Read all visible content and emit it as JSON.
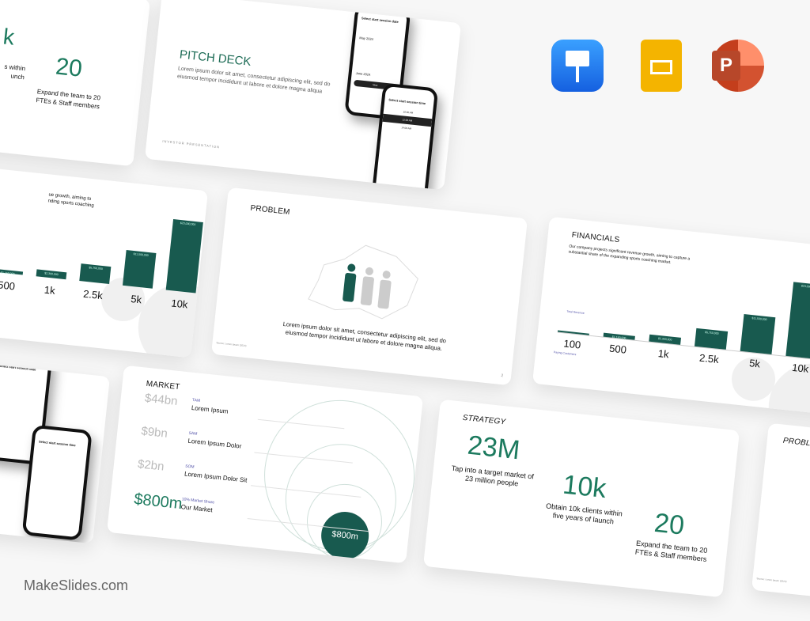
{
  "brand": "MakeSlides.com",
  "app_icons": [
    {
      "name": "keynote-icon",
      "color": "#1e7cf0"
    },
    {
      "name": "google-slides-icon",
      "color": "#f4b400"
    },
    {
      "name": "powerpoint-icon",
      "color": "#c43e1c"
    }
  ],
  "colors": {
    "accent": "#185a4f",
    "accent_text": "#1c7a5e"
  },
  "top_left_partial": {
    "stat": "20",
    "caption_partial": "s within\nunch",
    "caption": "Expand the team to 20 FTEs & Staff members",
    "stat_partial": "k"
  },
  "pitch": {
    "title": "PITCH DECK",
    "body": "Lorem ipsum dolor sit amet, consectetur adipiscing elit, sed do eiusmod tempor incididunt ut labore et dolore magna aliqua",
    "footer": "INVESTOR PRESENTATION",
    "phone1": {
      "title": "Select start session date",
      "month1": "May 2024",
      "month2": "June 2024",
      "button": "Next"
    },
    "phone2": {
      "title": "Select start session time",
      "slots": [
        "10:00 AM",
        "12:00 AM",
        "14:00 AM"
      ]
    }
  },
  "left_chart": {
    "text": "ue growth, aiming to\nnding sports coaching"
  },
  "problem": {
    "title": "PROBLEM",
    "body": "Lorem ipsum dolor sit amet, consectetur adipiscing elit, sed do eiusmod tempor incididunt ut labore et dolore magna aliqua.",
    "source": "Source: Lorem Ipsum (2024)",
    "page": "2"
  },
  "chart_data": {
    "type": "bar",
    "title": "FINANCIALS",
    "subtitle": "Our company projects significant revenue growth, aiming to capture a substantial share of the expanding sports coaching market.",
    "series_label": "Total Revenue",
    "x_label": "Paying Customers",
    "categories": [
      "100",
      "500",
      "1k",
      "2.5k",
      "5k",
      "10k"
    ],
    "values": [
      230000,
      1150000,
      2300000,
      5750000,
      11500000,
      23000000
    ],
    "data_labels": [
      "",
      "$1,150,000",
      "$2,300,000",
      "$5,750,000",
      "$11,500,000",
      "$23,000,000"
    ]
  },
  "market": {
    "title": "MARKET",
    "rows": [
      {
        "value": "$44bn",
        "tag": "TAM",
        "label": "Lorem Ipsum"
      },
      {
        "value": "$9bn",
        "tag": "SAM",
        "label": "Lorem Ipsum Dolor"
      },
      {
        "value": "$2bn",
        "tag": "SOM",
        "label": "Lorem Ipsum Dolor Sit"
      },
      {
        "value": "$800m",
        "tag": "10% Market Share",
        "label": "Our Market"
      }
    ],
    "circle_label": "$800m"
  },
  "strategy": {
    "title": "STRATEGY",
    "stats": [
      {
        "value": "23M",
        "caption": "Tap into a target market of 23 million people"
      },
      {
        "value": "10k",
        "caption": "Obtain 10k clients within five years of launch"
      },
      {
        "value": "20",
        "caption": "Expand the team to 20 FTEs & Staff members"
      }
    ]
  },
  "problem2": {
    "title": "PROBLEM",
    "source": "Source: Lorem Ipsum (2024)"
  }
}
